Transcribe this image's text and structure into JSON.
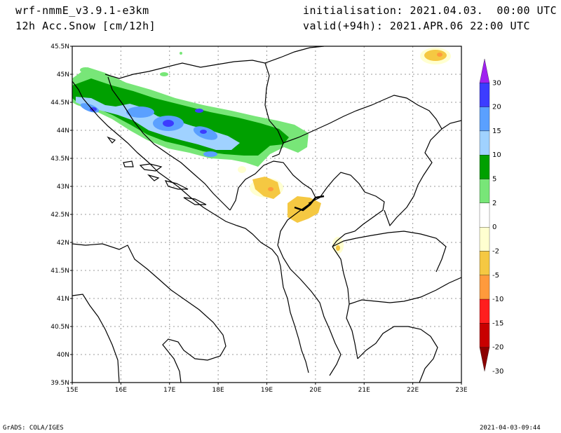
{
  "header": {
    "model": "wrf-nmmE_v3.9.1-e3km",
    "field": "12h Acc.Snow [cm/12h]",
    "init": "initialisation: 2021.04.03.  00:00 UTC",
    "valid": "valid(+94h): 2021.APR.06 22:00 UTC"
  },
  "map": {
    "lat_labels": [
      "45.5N",
      "45N",
      "44.5N",
      "44N",
      "43.5N",
      "43N",
      "42.5N",
      "42N",
      "41.5N",
      "41N",
      "40.5N",
      "40N",
      "39.5N"
    ],
    "lon_labels": [
      "15E",
      "16E",
      "17E",
      "18E",
      "19E",
      "20E",
      "21E",
      "22E",
      "23E"
    ],
    "lat_range": [
      39.5,
      45.5
    ],
    "lon_range": [
      15,
      23
    ],
    "grid": true
  },
  "colorbar": {
    "labels": [
      "30",
      "20",
      "15",
      "10",
      "5",
      "2",
      "0",
      "-2",
      "-5",
      "-10",
      "-15",
      "-20",
      "-30"
    ],
    "colors": [
      "#a020f0",
      "#3c3cff",
      "#5aa0ff",
      "#a0d2ff",
      "#00a000",
      "#78e678",
      "#ffffff",
      "#ffffd0",
      "#f5c842",
      "#ff9a3c",
      "#ff1e1e",
      "#c80000",
      "#8b0000"
    ]
  },
  "footer": {
    "left": "GrADS: COLA/IGES",
    "right": "2021-04-03-09:44"
  }
}
